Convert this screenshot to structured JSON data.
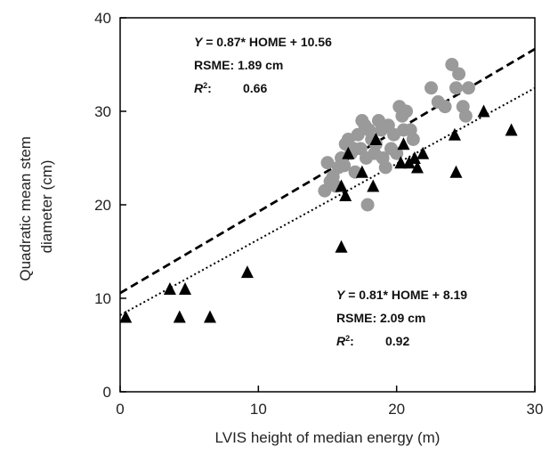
{
  "chart_data": {
    "type": "scatter",
    "xlabel": "LVIS height of median energy (m)",
    "ylabel": "Quadratic mean stem diameter (cm)",
    "xlim": [
      0,
      30
    ],
    "ylim": [
      0,
      40
    ],
    "xticks": [
      0,
      10,
      20,
      30
    ],
    "yticks": [
      0,
      10,
      20,
      30,
      40
    ],
    "grid": false,
    "series": [
      {
        "marker": "circle",
        "color": "#9a9a9a",
        "points": [
          [
            14.8,
            21.5
          ],
          [
            15.0,
            24.5
          ],
          [
            15.2,
            22.5
          ],
          [
            15.4,
            23.0
          ],
          [
            15.6,
            22.0
          ],
          [
            15.8,
            24.0
          ],
          [
            16.0,
            25.0
          ],
          [
            16.2,
            24.2
          ],
          [
            16.3,
            26.5
          ],
          [
            16.5,
            27.0
          ],
          [
            16.7,
            25.5
          ],
          [
            16.9,
            26.0
          ],
          [
            17.0,
            23.5
          ],
          [
            17.2,
            27.5
          ],
          [
            17.4,
            26.0
          ],
          [
            17.5,
            29.0
          ],
          [
            17.7,
            28.5
          ],
          [
            17.8,
            25.0
          ],
          [
            17.9,
            20.0
          ],
          [
            18.0,
            28.0
          ],
          [
            18.2,
            27.0
          ],
          [
            18.4,
            25.5
          ],
          [
            18.5,
            26.5
          ],
          [
            18.7,
            29.0
          ],
          [
            18.9,
            28.0
          ],
          [
            19.0,
            25.0
          ],
          [
            19.2,
            24.0
          ],
          [
            19.4,
            28.5
          ],
          [
            19.6,
            26.0
          ],
          [
            19.8,
            27.5
          ],
          [
            20.0,
            25.5
          ],
          [
            20.2,
            30.5
          ],
          [
            20.4,
            29.5
          ],
          [
            20.5,
            28.0
          ],
          [
            20.7,
            30.0
          ],
          [
            21.0,
            28.0
          ],
          [
            21.2,
            27.0
          ],
          [
            22.5,
            32.5
          ],
          [
            23.0,
            31.0
          ],
          [
            23.5,
            30.5
          ],
          [
            24.0,
            35.0
          ],
          [
            24.3,
            32.5
          ],
          [
            24.5,
            34.0
          ],
          [
            24.8,
            30.5
          ],
          [
            25.0,
            29.5
          ],
          [
            25.2,
            32.5
          ]
        ]
      },
      {
        "marker": "triangle",
        "color": "#000000",
        "points": [
          [
            0.4,
            8.0
          ],
          [
            3.6,
            11.0
          ],
          [
            4.3,
            8.0
          ],
          [
            4.7,
            11.0
          ],
          [
            6.5,
            8.0
          ],
          [
            9.2,
            12.8
          ],
          [
            16.0,
            15.5
          ],
          [
            16.0,
            22.0
          ],
          [
            16.3,
            21.0
          ],
          [
            16.5,
            25.5
          ],
          [
            17.5,
            23.5
          ],
          [
            18.3,
            22.0
          ],
          [
            18.5,
            27.0
          ],
          [
            20.3,
            24.5
          ],
          [
            20.5,
            26.5
          ],
          [
            20.9,
            24.5
          ],
          [
            21.3,
            25.0
          ],
          [
            21.5,
            24.0
          ],
          [
            21.9,
            25.5
          ],
          [
            24.2,
            27.5
          ],
          [
            24.3,
            23.5
          ],
          [
            26.3,
            30.0
          ],
          [
            28.3,
            28.0
          ]
        ]
      }
    ],
    "fit_lines": [
      {
        "style": "dashed",
        "slope": 0.87,
        "intercept": 10.56,
        "x_range": [
          0,
          30
        ]
      },
      {
        "style": "dotted",
        "slope": 0.81,
        "intercept": 8.19,
        "x_range": [
          0,
          30
        ]
      }
    ],
    "annotations": {
      "upper": {
        "y_label": "Y",
        "equation": " = 0.87* HOME + 10.56",
        "rsme": "RSME: 1.89 cm",
        "r2_label": "R",
        "r2_sup": "2",
        "r2_colon": ":",
        "r2_value": "0.66"
      },
      "lower": {
        "y_label": "Y",
        "equation": " = 0.81* HOME + 8.19",
        "rsme": "RSME: 2.09 cm",
        "r2_label": "R",
        "r2_sup": "2",
        "r2_colon": ":",
        "r2_value": "0.92"
      }
    }
  }
}
